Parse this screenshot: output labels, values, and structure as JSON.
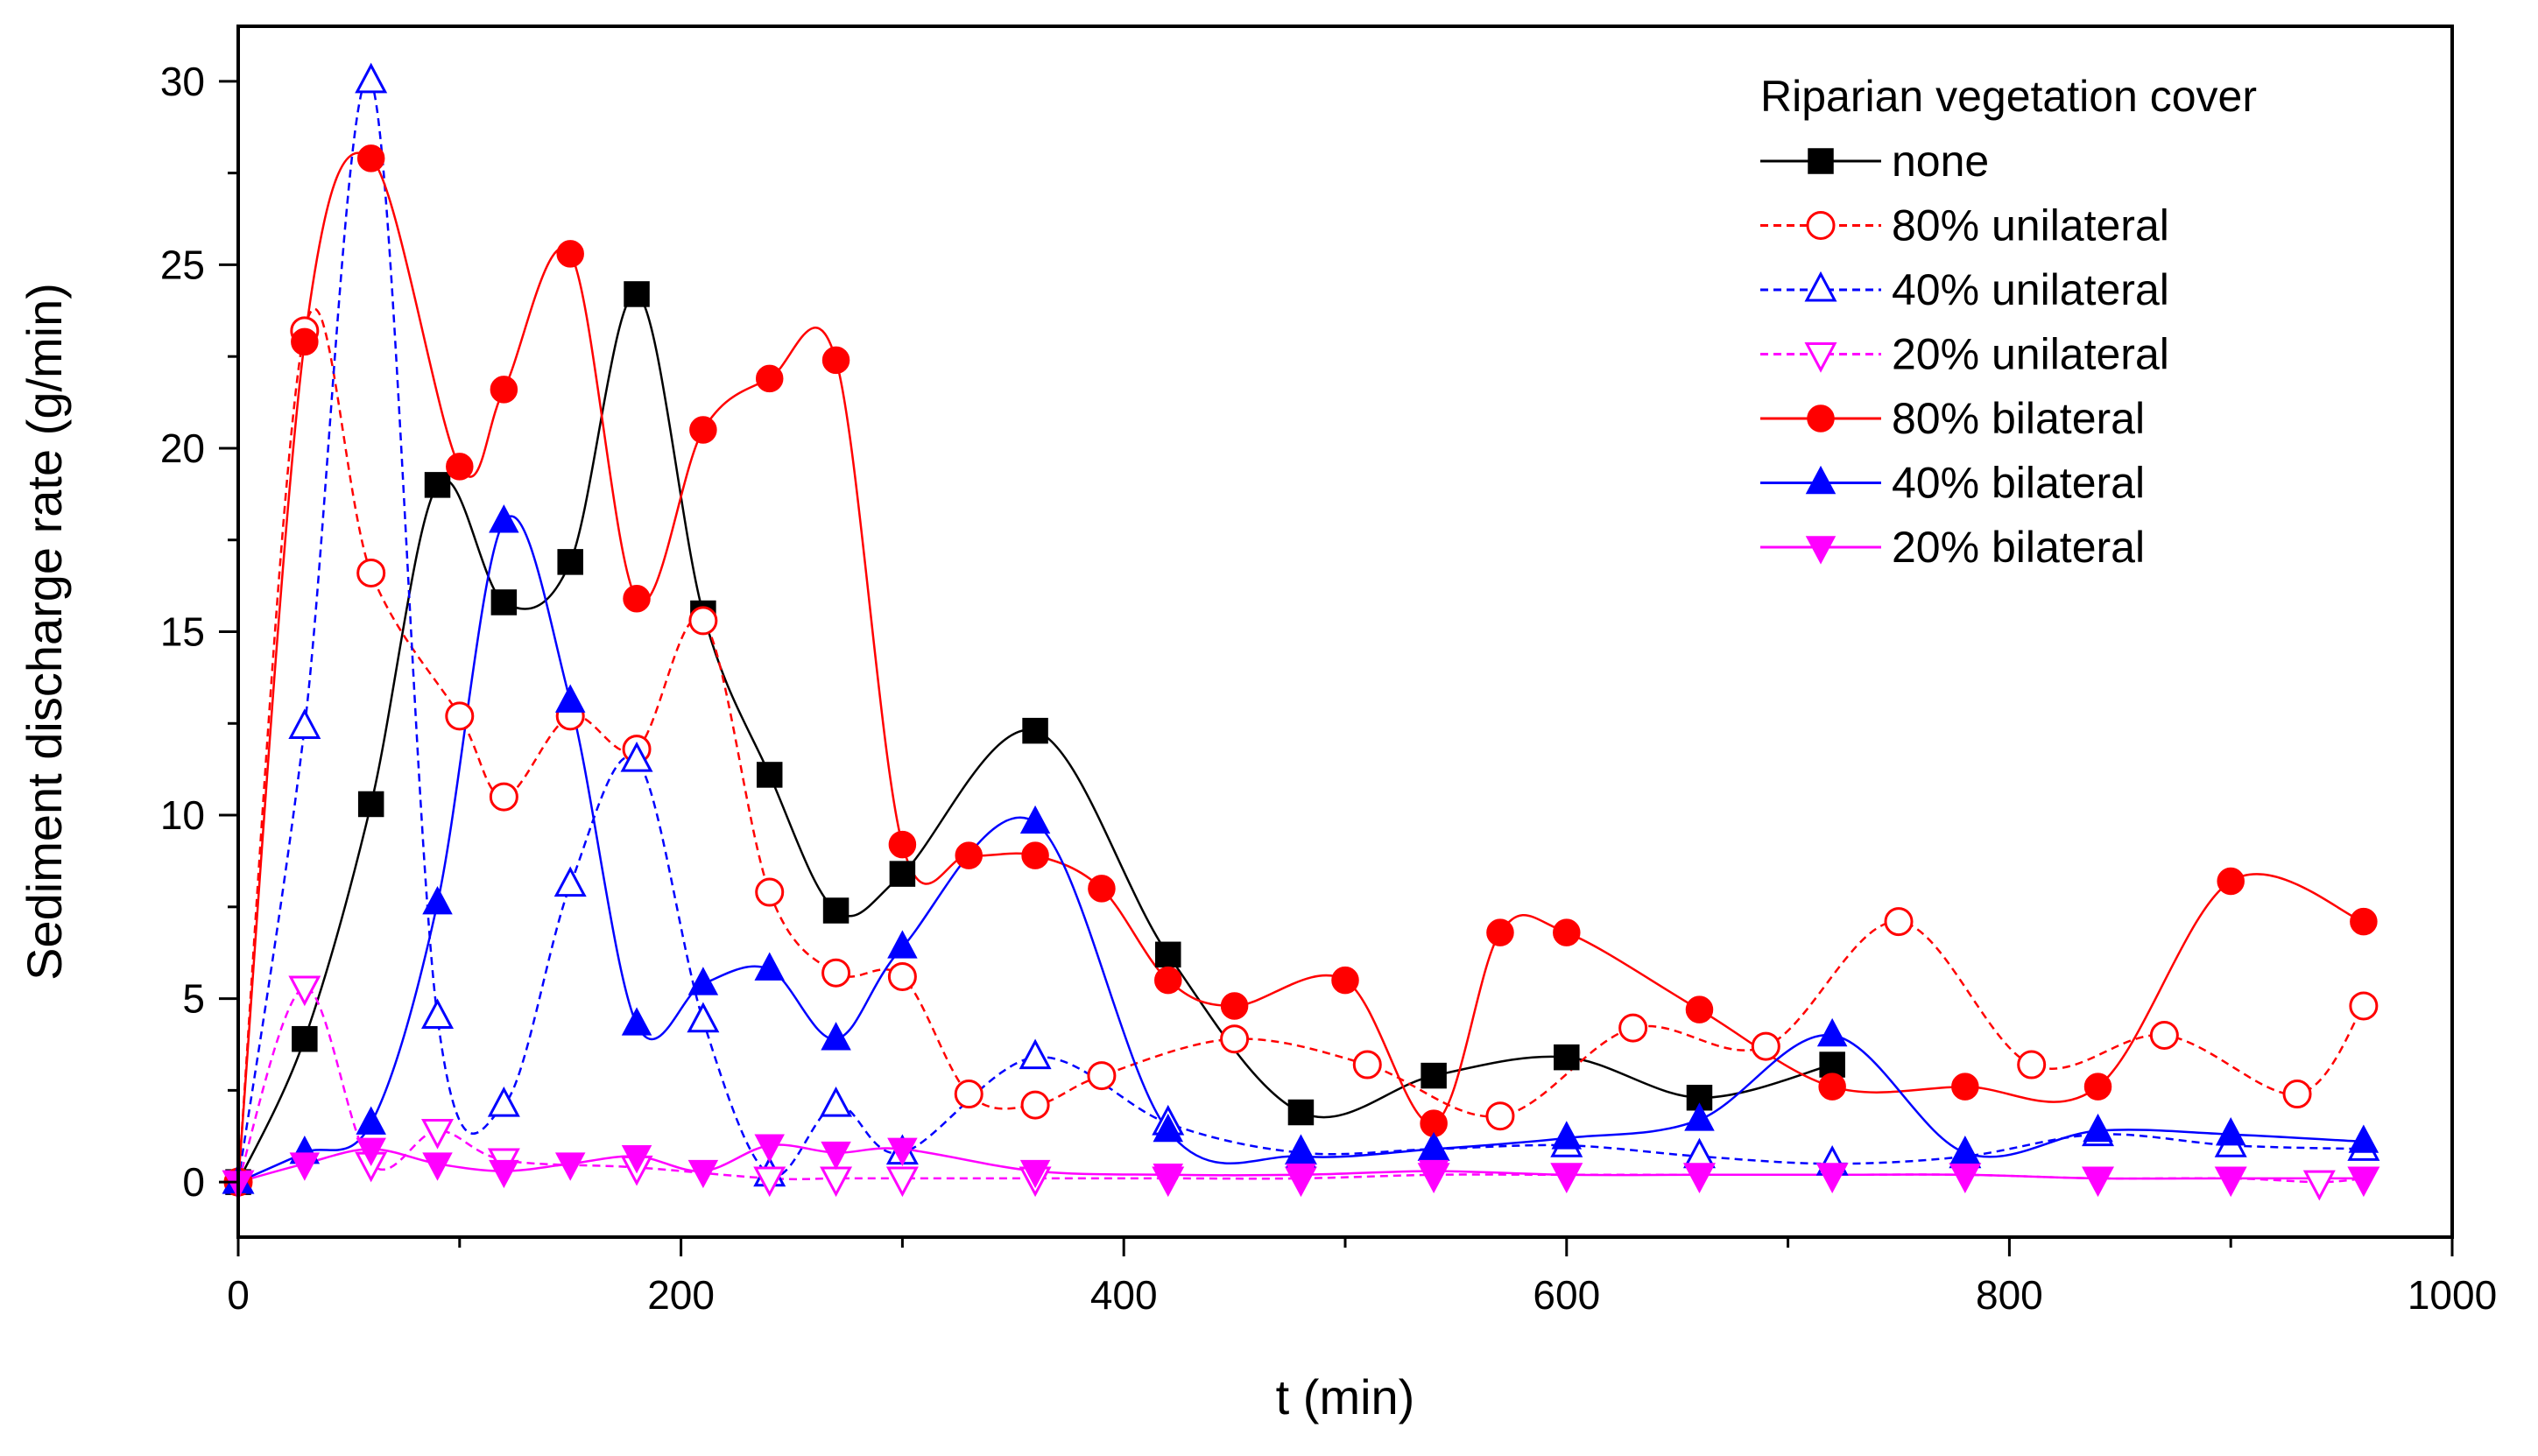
{
  "chart_data": {
    "type": "line",
    "title": "",
    "xlabel": "t (min)",
    "ylabel": "Sediment discharge rate (g/min)",
    "xlim": [
      0,
      1000
    ],
    "ylim": [
      -1.5,
      31.5
    ],
    "xticks": [
      0,
      200,
      400,
      600,
      800,
      1000
    ],
    "xtick_labels": [
      "0",
      "200",
      "400",
      "600",
      "800",
      "1000"
    ],
    "yticks": [
      0,
      5,
      10,
      15,
      20,
      25,
      30
    ],
    "ytick_labels": [
      "0",
      "5",
      "10",
      "15",
      "20",
      "25",
      "30"
    ],
    "grid": false,
    "legend_title": "Riparian vegetation cover",
    "legend_position": "top-right",
    "series": [
      {
        "name": "none",
        "color": "#000000",
        "marker": "square",
        "filled": true,
        "dashed": false,
        "x": [
          0,
          30,
          60,
          90,
          120,
          150,
          180,
          210,
          240,
          270,
          300,
          360,
          420,
          480,
          540,
          600,
          660,
          720
        ],
        "y": [
          0,
          3.9,
          10.3,
          19.0,
          15.8,
          16.9,
          24.2,
          15.5,
          11.1,
          7.4,
          8.4,
          12.3,
          6.2,
          1.9,
          2.9,
          3.4,
          2.3,
          3.2
        ]
      },
      {
        "name": "80% unilateral",
        "color": "#ff0000",
        "marker": "circle",
        "filled": false,
        "dashed": true,
        "x": [
          0,
          30,
          60,
          100,
          120,
          150,
          180,
          210,
          240,
          270,
          300,
          330,
          360,
          390,
          450,
          510,
          570,
          630,
          690,
          750,
          810,
          870,
          930,
          960
        ],
        "y": [
          0,
          23.2,
          16.6,
          12.7,
          10.5,
          12.7,
          11.8,
          15.3,
          7.9,
          5.7,
          5.6,
          2.4,
          2.1,
          2.9,
          3.9,
          3.2,
          1.8,
          4.2,
          3.7,
          7.1,
          3.2,
          4.0,
          2.4,
          4.8
        ]
      },
      {
        "name": "40% unilateral",
        "color": "#0000ff",
        "marker": "triangle-up",
        "filled": false,
        "dashed": true,
        "x": [
          0,
          30,
          60,
          90,
          120,
          150,
          180,
          210,
          240,
          270,
          300,
          360,
          420,
          480,
          540,
          600,
          660,
          720,
          780,
          840,
          900,
          960
        ],
        "y": [
          0,
          12.4,
          30.0,
          4.5,
          2.1,
          8.1,
          11.5,
          4.4,
          0.2,
          2.1,
          0.8,
          3.4,
          1.6,
          0.8,
          0.9,
          1.0,
          0.7,
          0.5,
          0.7,
          1.3,
          1.0,
          0.9
        ]
      },
      {
        "name": "20% unilateral",
        "color": "#ff00ff",
        "marker": "triangle-down",
        "filled": false,
        "dashed": true,
        "x": [
          0,
          30,
          60,
          90,
          120,
          180,
          240,
          270,
          300,
          360,
          420,
          480,
          540,
          600,
          660,
          720,
          780,
          840,
          900,
          940,
          960
        ],
        "y": [
          0,
          5.3,
          0.5,
          1.4,
          0.6,
          0.4,
          0.1,
          0.1,
          0.1,
          0.1,
          0.1,
          0.1,
          0.2,
          0.2,
          0.2,
          0.2,
          0.2,
          0.1,
          0.1,
          0.0,
          0.1
        ]
      },
      {
        "name": "80% bilateral",
        "color": "#ff0000",
        "marker": "circle",
        "filled": true,
        "dashed": false,
        "x": [
          0,
          30,
          60,
          100,
          120,
          150,
          180,
          210,
          240,
          270,
          300,
          330,
          360,
          390,
          420,
          450,
          500,
          540,
          570,
          600,
          660,
          720,
          780,
          840,
          900,
          960
        ],
        "y": [
          0,
          22.9,
          27.9,
          19.5,
          21.6,
          25.3,
          15.9,
          20.5,
          21.9,
          22.4,
          9.2,
          8.9,
          8.9,
          8.0,
          5.5,
          4.8,
          5.5,
          1.6,
          6.8,
          6.8,
          4.7,
          2.6,
          2.6,
          2.6,
          8.2,
          7.1
        ]
      },
      {
        "name": "40% bilateral",
        "color": "#0000ff",
        "marker": "triangle-up",
        "filled": true,
        "dashed": false,
        "x": [
          0,
          30,
          60,
          90,
          120,
          150,
          180,
          210,
          240,
          270,
          300,
          360,
          420,
          480,
          540,
          600,
          660,
          720,
          780,
          840,
          900,
          960
        ],
        "y": [
          0,
          0.8,
          1.6,
          7.6,
          18.0,
          13.1,
          4.3,
          5.4,
          5.8,
          3.9,
          6.4,
          9.8,
          1.4,
          0.7,
          0.9,
          1.2,
          1.7,
          4.0,
          0.8,
          1.4,
          1.3,
          1.1
        ]
      },
      {
        "name": "20% bilateral",
        "color": "#ff00ff",
        "marker": "triangle-down",
        "filled": true,
        "dashed": false,
        "x": [
          0,
          30,
          60,
          90,
          120,
          150,
          180,
          210,
          240,
          270,
          300,
          360,
          420,
          480,
          540,
          600,
          660,
          720,
          780,
          840,
          900,
          960
        ],
        "y": [
          0,
          0.5,
          0.9,
          0.5,
          0.3,
          0.5,
          0.7,
          0.3,
          1.0,
          0.8,
          0.9,
          0.3,
          0.2,
          0.2,
          0.3,
          0.2,
          0.2,
          0.2,
          0.2,
          0.1,
          0.1,
          0.1
        ]
      }
    ]
  }
}
